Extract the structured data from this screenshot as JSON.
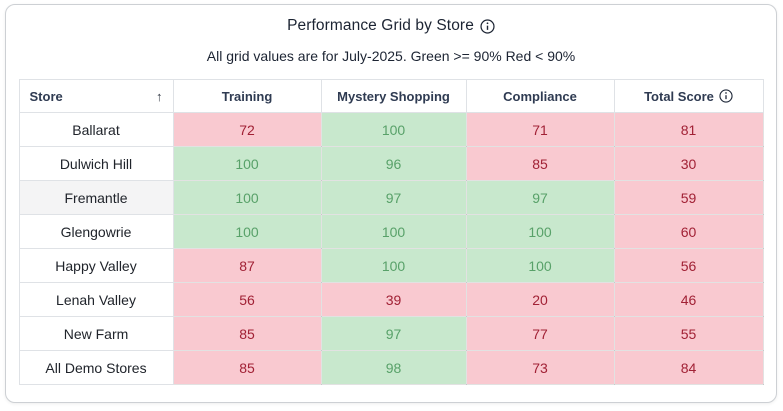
{
  "card": {
    "title": "Performance Grid by Store",
    "subtitle": "All grid values are for July-2025. Green >= 90% Red < 90%"
  },
  "table": {
    "sort_indicator": "↑",
    "columns": [
      {
        "label": "Store",
        "sorted": "ascending"
      },
      {
        "label": "Training"
      },
      {
        "label": "Mystery Shopping"
      },
      {
        "label": "Compliance"
      },
      {
        "label": "Total Score",
        "has_info_icon": true
      }
    ],
    "rows": [
      {
        "store": "Ballarat",
        "hovered": false,
        "cells": [
          {
            "value": 72,
            "status": "red"
          },
          {
            "value": 100,
            "status": "green"
          },
          {
            "value": 71,
            "status": "red"
          },
          {
            "value": 81,
            "status": "red"
          }
        ]
      },
      {
        "store": "Dulwich Hill",
        "hovered": false,
        "cells": [
          {
            "value": 100,
            "status": "green"
          },
          {
            "value": 96,
            "status": "green"
          },
          {
            "value": 85,
            "status": "red"
          },
          {
            "value": 30,
            "status": "red"
          }
        ]
      },
      {
        "store": "Fremantle",
        "hovered": true,
        "cells": [
          {
            "value": 100,
            "status": "green"
          },
          {
            "value": 97,
            "status": "green"
          },
          {
            "value": 97,
            "status": "green"
          },
          {
            "value": 59,
            "status": "red"
          }
        ]
      },
      {
        "store": "Glengowrie",
        "hovered": false,
        "cells": [
          {
            "value": 100,
            "status": "green"
          },
          {
            "value": 100,
            "status": "green"
          },
          {
            "value": 100,
            "status": "green"
          },
          {
            "value": 60,
            "status": "red"
          }
        ]
      },
      {
        "store": "Happy Valley",
        "hovered": false,
        "cells": [
          {
            "value": 87,
            "status": "red"
          },
          {
            "value": 100,
            "status": "green"
          },
          {
            "value": 100,
            "status": "green"
          },
          {
            "value": 56,
            "status": "red"
          }
        ]
      },
      {
        "store": "Lenah Valley",
        "hovered": false,
        "cells": [
          {
            "value": 56,
            "status": "red"
          },
          {
            "value": 39,
            "status": "red"
          },
          {
            "value": 20,
            "status": "red"
          },
          {
            "value": 46,
            "status": "red"
          }
        ]
      },
      {
        "store": "New Farm",
        "hovered": false,
        "cells": [
          {
            "value": 85,
            "status": "red"
          },
          {
            "value": 97,
            "status": "green"
          },
          {
            "value": 77,
            "status": "red"
          },
          {
            "value": 55,
            "status": "red"
          }
        ]
      },
      {
        "store": "All Demo Stores",
        "hovered": false,
        "cells": [
          {
            "value": 85,
            "status": "red"
          },
          {
            "value": 98,
            "status": "green"
          },
          {
            "value": 73,
            "status": "red"
          },
          {
            "value": 84,
            "status": "red"
          }
        ]
      }
    ]
  },
  "colors": {
    "green_bg": "#c8e8cd",
    "green_text": "#58a169",
    "red_bg": "#f9c9d0",
    "red_text": "#a12135"
  }
}
